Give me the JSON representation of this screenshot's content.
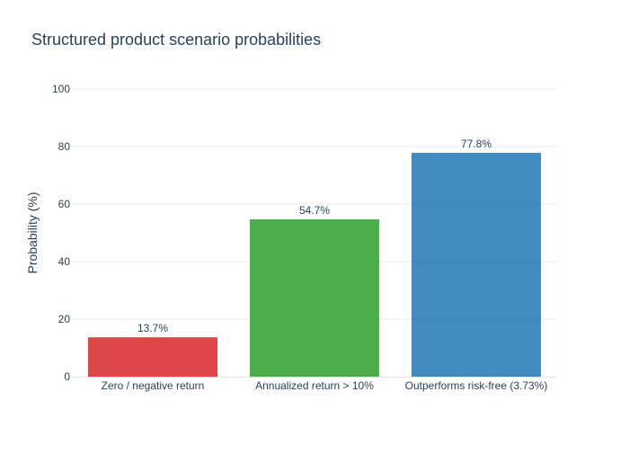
{
  "chart_data": {
    "type": "bar",
    "title": "Structured product scenario probabilities",
    "xlabel": "",
    "ylabel": "Probability (%)",
    "ylim": [
      0,
      100
    ],
    "yticks": [
      0,
      20,
      40,
      60,
      80,
      100
    ],
    "grid": true,
    "categories": [
      "Zero / negative return",
      "Annualized return > 10%",
      "Outperforms risk-free (3.73%)"
    ],
    "values": [
      13.7,
      54.7,
      77.8
    ],
    "data_labels": [
      "13.7%",
      "54.7%",
      "77.8%"
    ],
    "colors": [
      "#d62728",
      "#2ca02c",
      "#1f77b4"
    ]
  }
}
